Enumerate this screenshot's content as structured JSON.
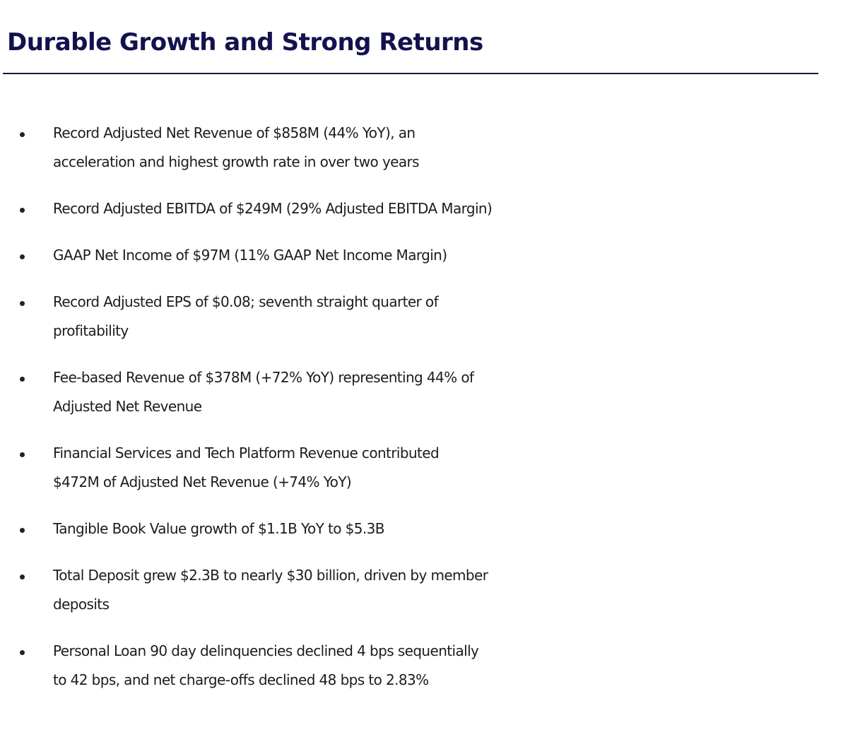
{
  "title": "Durable Growth and Strong Returns",
  "colors": {
    "title": "#13124e",
    "rule": "#13124e",
    "text": "#1c1c1c",
    "bullet": "#222222"
  },
  "bullets": [
    {
      "lines": [
        "Record Adjusted Net Revenue of $858M (44% YoY), an",
        "acceleration and highest growth rate in over two years"
      ]
    },
    {
      "lines": [
        "Record Adjusted EBITDA of $249M (29% Adjusted EBITDA Margin)"
      ]
    },
    {
      "lines": [
        "GAAP Net Income of $97M (11% GAAP Net Income Margin)"
      ]
    },
    {
      "lines": [
        "Record Adjusted EPS of $0.08; seventh straight quarter of",
        "profitability"
      ]
    },
    {
      "lines": [
        "Fee-based Revenue of $378M (+72% YoY) representing 44% of",
        "Adjusted Net Revenue"
      ]
    },
    {
      "lines": [
        "Financial Services and Tech Platform Revenue contributed",
        "$472M of Adjusted Net Revenue (+74% YoY)"
      ]
    },
    {
      "lines": [
        "Tangible Book Value growth of $1.1B YoY to $5.3B"
      ]
    },
    {
      "lines": [
        "Total Deposit grew $2.3B to nearly $30 billion, driven by member",
        "deposits"
      ]
    },
    {
      "lines": [
        "Personal Loan 90 day delinquencies declined 4 bps sequentially",
        "to 42 bps, and net charge-offs declined 48 bps to 2.83%"
      ]
    }
  ]
}
